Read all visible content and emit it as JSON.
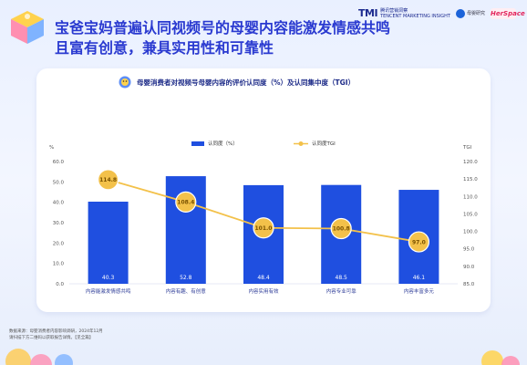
{
  "header": {
    "title_line1": "宝爸宝妈普遍认同视频号的母婴内容能激发情感共鸣",
    "title_line2": "且富有创意，兼具实用性和可靠性",
    "logo_tmi": "TMI",
    "logo_tmi_sub": "腾讯营销洞察",
    "logo_tmi_sub2": "TENCENT MARKETING INSIGHT",
    "logo_b": "母婴研究",
    "logo_c": "HerSpace"
  },
  "chart_data": {
    "type": "bar",
    "title": "母婴消费者对视频号母婴内容的评价认同度（%）及认同集中度（TGI）",
    "categories": [
      "内容能激发情感共鸣",
      "内容有趣、有创意",
      "内容实用有效",
      "内容专业可靠",
      "内容丰富多元"
    ],
    "series": [
      {
        "name": "认同度（%）",
        "type": "bar",
        "values": [
          40.3,
          52.8,
          48.4,
          48.5,
          46.1
        ],
        "color": "#1f4fe0"
      },
      {
        "name": "认同度TGI",
        "type": "line",
        "values": [
          114.8,
          108.4,
          101.0,
          100.8,
          97.0
        ],
        "color": "#f3c14a"
      }
    ],
    "y_left": {
      "label": "%",
      "ylim": [
        0,
        60
      ],
      "ticks": [
        "0.0",
        "10.0",
        "20.0",
        "30.0",
        "40.0",
        "50.0",
        "60.0"
      ]
    },
    "y_right": {
      "label": "TGI",
      "ylim": [
        85,
        120
      ],
      "ticks": [
        "85.0",
        "90.0",
        "95.0",
        "100.0",
        "105.0",
        "110.0",
        "115.0",
        "120.0"
      ]
    },
    "legend_position": "top",
    "grid": false
  },
  "footer": {
    "line1": "数据来源：母婴消费者内容影响调研，2024年12月",
    "line2": "请扫描下方二维码以获取报告详情。【见全篇】"
  }
}
